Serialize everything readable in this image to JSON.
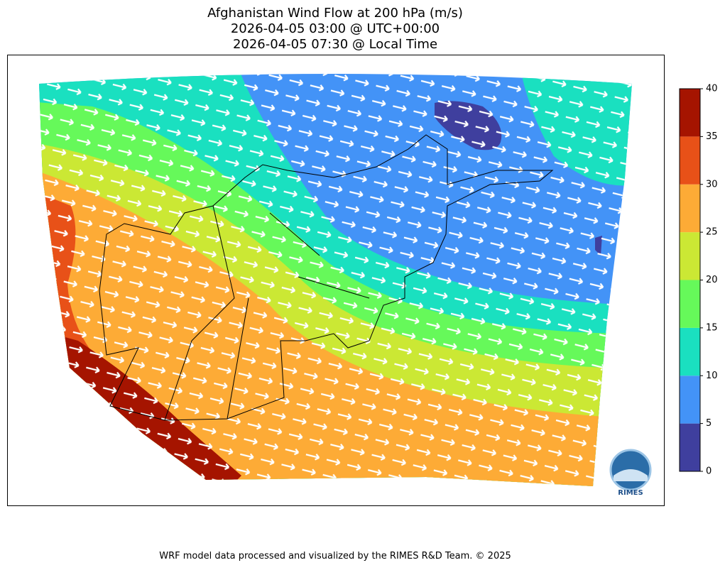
{
  "title_lines": [
    "Afghanistan Wind Flow at 200 hPa (m/s)",
    "2026-04-05 03:00 @ UTC+00:00",
    "2026-04-05 07:30 @ Local Time"
  ],
  "colorbar": {
    "ticks": [
      0,
      5,
      10,
      15,
      20,
      25,
      30,
      35,
      40
    ],
    "colors": [
      "#3f3f9e",
      "#4393f7",
      "#1ae0c0",
      "#66f95a",
      "#cbe834",
      "#fdab36",
      "#e85118",
      "#a51400"
    ]
  },
  "logo_text": "RIMES",
  "footer": "WRF model data processed and visualized by the RIMES R&D Team. © 2025"
}
